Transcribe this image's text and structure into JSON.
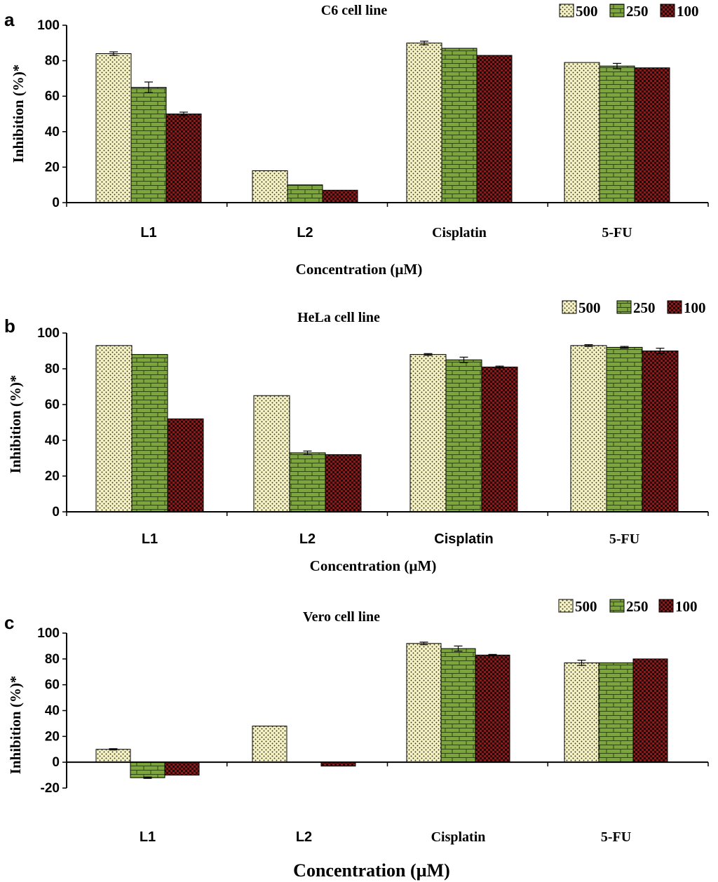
{
  "figure": {
    "series_names": [
      "500",
      "250",
      "100"
    ],
    "colors": {
      "s500_bg": "#f5f2c4",
      "s500_dot": "#3a3526",
      "s250_bg": "#7da63a",
      "s250_line": "#2e4710",
      "s100_bg": "#8c1a1a",
      "s100_dot": "#2a0505",
      "axis": "#000000"
    }
  },
  "chart_data": [
    {
      "type": "bar",
      "panel": "a",
      "title": "C6 cell line",
      "xlabel": "Concentration (µM)",
      "ylabel": "Inhibition (%)*",
      "categories": [
        "L1",
        "L2",
        "Cisplatin",
        "5-FU"
      ],
      "series": [
        {
          "name": "500",
          "values": [
            84,
            18,
            90,
            79
          ],
          "errors": [
            1,
            0,
            1,
            0
          ]
        },
        {
          "name": "250",
          "values": [
            65,
            10,
            87,
            77
          ],
          "errors": [
            3,
            0,
            0,
            1.5
          ]
        },
        {
          "name": "100",
          "values": [
            50,
            7,
            83,
            76
          ],
          "errors": [
            1,
            0,
            0,
            0
          ]
        }
      ],
      "ylim": [
        0,
        100
      ],
      "yticks": [
        "0",
        "20",
        "40",
        "60",
        "80",
        "100"
      ],
      "legend": "top-right"
    },
    {
      "type": "bar",
      "panel": "b",
      "title": "HeLa cell line",
      "xlabel": "Concentration (µM)",
      "ylabel": "Inhibition (%)*",
      "categories": [
        "L1",
        "L2",
        "Cisplatin",
        "5-FU"
      ],
      "series": [
        {
          "name": "500",
          "values": [
            93,
            65,
            88,
            93
          ],
          "errors": [
            0,
            0,
            0.5,
            0.5
          ]
        },
        {
          "name": "250",
          "values": [
            88,
            33,
            85,
            92
          ],
          "errors": [
            0,
            1,
            1.5,
            0.5
          ]
        },
        {
          "name": "100",
          "values": [
            52,
            32,
            81,
            90
          ],
          "errors": [
            0,
            0,
            0.5,
            1.5
          ]
        }
      ],
      "ylim": [
        0,
        100
      ],
      "yticks": [
        "0",
        "20",
        "40",
        "60",
        "80",
        "100"
      ],
      "legend": "top-right"
    },
    {
      "type": "bar",
      "panel": "c",
      "title": "Vero cell line",
      "xlabel": "Concentration (µM)",
      "ylabel": "Inhibition (%)*",
      "categories": [
        "L1",
        "L2",
        "Cisplatin",
        "5-FU"
      ],
      "series": [
        {
          "name": "500",
          "values": [
            10,
            28,
            92,
            77
          ],
          "errors": [
            0.5,
            0,
            1,
            2
          ]
        },
        {
          "name": "250",
          "values": [
            -12,
            0,
            88,
            77
          ],
          "errors": [
            0.5,
            0,
            2,
            0
          ]
        },
        {
          "name": "100",
          "values": [
            -10,
            -3,
            83,
            80
          ],
          "errors": [
            0,
            0,
            0.5,
            0
          ]
        }
      ],
      "ylim": [
        -20,
        100
      ],
      "yticks": [
        "-20",
        "0",
        "20",
        "40",
        "60",
        "80",
        "100"
      ],
      "legend": "top-right"
    }
  ]
}
